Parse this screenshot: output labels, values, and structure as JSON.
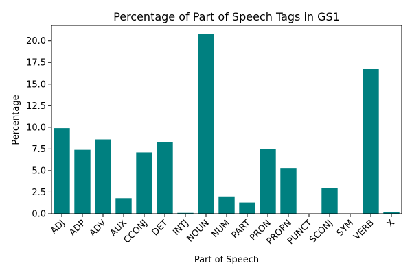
{
  "chart_data": {
    "type": "bar",
    "title": "Percentage of Part of Speech Tags in GS1",
    "xlabel": "Part of Speech",
    "ylabel": "Percentage",
    "categories": [
      "ADJ",
      "ADP",
      "ADV",
      "AUX",
      "CCONJ",
      "DET",
      "INTJ",
      "NOUN",
      "NUM",
      "PART",
      "PRON",
      "PROPN",
      "PUNCT",
      "SCONJ",
      "SYM",
      "VERB",
      "X"
    ],
    "values": [
      9.9,
      7.4,
      8.6,
      1.8,
      7.1,
      8.3,
      0.1,
      20.8,
      2.0,
      1.3,
      7.5,
      5.3,
      0.0,
      3.0,
      0.0,
      16.8,
      0.2
    ],
    "ylim": [
      0,
      21.8
    ],
    "yticks": [
      "0.0",
      "2.5",
      "5.0",
      "7.5",
      "10.0",
      "12.5",
      "15.0",
      "17.5",
      "20.0"
    ],
    "bar_color": "#008080",
    "grid": false,
    "legend": "none"
  }
}
